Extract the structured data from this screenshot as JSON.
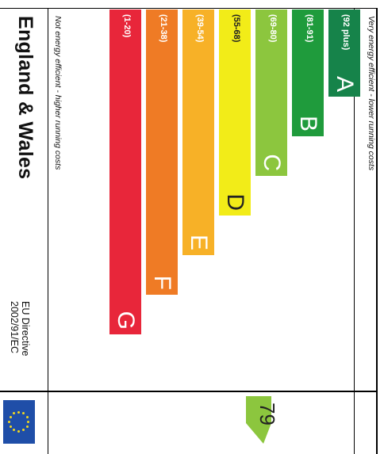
{
  "top_note": "Very energy efficient - lower running costs",
  "bottom_note": "Not energy efficient - higher running costs",
  "region": "England & Wales",
  "directive_line1": "EU Directive",
  "directive_line2": "2002/91/EC",
  "bands": [
    {
      "range": "(92 plus)",
      "letter": "A",
      "color": "#16834a"
    },
    {
      "range": "(81-91)",
      "letter": "B",
      "color": "#1f9b3c"
    },
    {
      "range": "(69-80)",
      "letter": "C",
      "color": "#8cc63e"
    },
    {
      "range": "(55-68)",
      "letter": "D",
      "color": "#f2ec18"
    },
    {
      "range": "(39-54)",
      "letter": "E",
      "color": "#f7b127"
    },
    {
      "range": "(21-38)",
      "letter": "F",
      "color": "#ef7b25"
    },
    {
      "range": "(1-20)",
      "letter": "G",
      "color": "#e8263a"
    }
  ],
  "current_rating": {
    "value": "79",
    "color": "#8cc63e"
  }
}
